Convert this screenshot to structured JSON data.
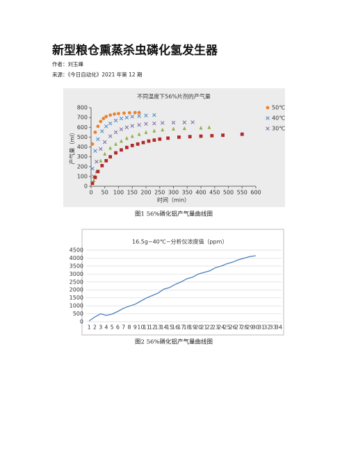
{
  "document": {
    "title": "新型粮仓熏蒸杀虫磷化氢发生器",
    "author": "作者：刘玉峰",
    "source": "来源：《今日自动化》2021 年第 12 期"
  },
  "chart_data": [
    {
      "type": "scatter",
      "title": "不同温度下56%片剂的产气量",
      "x_label": "时间（min）",
      "y_label": "产气量（ml）",
      "caption": "图1  56%磷化铝产气量曲线图",
      "xlim": [
        0,
        600
      ],
      "xticks": [
        0,
        50,
        100,
        150,
        200,
        250,
        300,
        350,
        400,
        450,
        500,
        550,
        600
      ],
      "ylim": [
        0,
        800
      ],
      "yticks": [
        0,
        100,
        200,
        300,
        400,
        500,
        600,
        700,
        800
      ],
      "legend": "right",
      "series": [
        {
          "name": "50℃",
          "color": "#e8822e",
          "marker": "circle",
          "x": [
            5,
            15,
            25,
            35,
            45,
            55,
            70,
            85,
            100,
            120,
            140,
            160,
            175
          ],
          "values": [
            430,
            550,
            610,
            660,
            690,
            710,
            725,
            735,
            740,
            745,
            748,
            750,
            750
          ]
        },
        {
          "name": "40℃",
          "color": "#4a86c8",
          "marker": "x",
          "x": [
            5,
            15,
            25,
            40,
            55,
            70,
            90,
            110,
            130,
            150,
            175,
            200,
            230
          ],
          "values": [
            180,
            360,
            480,
            560,
            610,
            640,
            670,
            690,
            700,
            710,
            715,
            720,
            725
          ]
        },
        {
          "name": "30℃",
          "color": "#7b6aa0",
          "marker": "x",
          "x": [
            10,
            20,
            35,
            50,
            70,
            90,
            110,
            130,
            150,
            175,
            200,
            230,
            260,
            300,
            340,
            370
          ],
          "values": [
            100,
            250,
            380,
            450,
            510,
            550,
            580,
            600,
            615,
            625,
            635,
            640,
            645,
            648,
            650,
            652
          ]
        },
        {
          "color": "#8db04a",
          "marker": "triangle",
          "x": [
            10,
            20,
            35,
            50,
            70,
            90,
            110,
            130,
            150,
            175,
            200,
            230,
            260,
            300,
            340,
            400,
            430
          ],
          "values": [
            60,
            150,
            260,
            330,
            390,
            430,
            460,
            490,
            510,
            530,
            550,
            565,
            575,
            585,
            590,
            595,
            600
          ]
        },
        {
          "color": "#b02a2a",
          "marker": "square",
          "x": [
            5,
            15,
            25,
            40,
            55,
            70,
            90,
            110,
            130,
            150,
            170,
            190,
            210,
            230,
            250,
            280,
            320,
            360,
            400,
            440,
            480,
            550
          ],
          "values": [
            30,
            90,
            150,
            210,
            260,
            300,
            340,
            370,
            395,
            415,
            430,
            445,
            460,
            470,
            480,
            490,
            500,
            505,
            510,
            515,
            520,
            530
          ]
        }
      ]
    },
    {
      "type": "line",
      "title": "16.5g−40℃−分析仪浓度值（ppm）",
      "caption": "图2  56%磷化铝产气量曲线图",
      "color": "#4a7ebb",
      "grid": true,
      "categories": [
        "1",
        "2",
        "3",
        "4",
        "5",
        "6",
        "7",
        "8",
        "9",
        "10",
        "11",
        "12",
        "13",
        "14",
        "15",
        "16",
        "17",
        "18",
        "19",
        "20",
        "21",
        "22",
        "23",
        "24",
        "25",
        "26",
        "27",
        "28",
        "29",
        "30",
        "31",
        "32",
        "33",
        "34"
      ],
      "values": [
        50,
        300,
        500,
        400,
        480,
        650,
        850,
        980,
        1100,
        1300,
        1500,
        1650,
        1800,
        2050,
        2150,
        2350,
        2500,
        2700,
        2800,
        3000,
        3100,
        3200,
        3400,
        3500,
        3650,
        3750,
        3900,
        4000,
        4100,
        4150,
        null,
        null,
        null,
        null
      ],
      "ylim": [
        0,
        4500
      ],
      "yticks": [
        0,
        500,
        1000,
        1500,
        2000,
        2500,
        3000,
        3500,
        4000,
        4500
      ]
    }
  ]
}
